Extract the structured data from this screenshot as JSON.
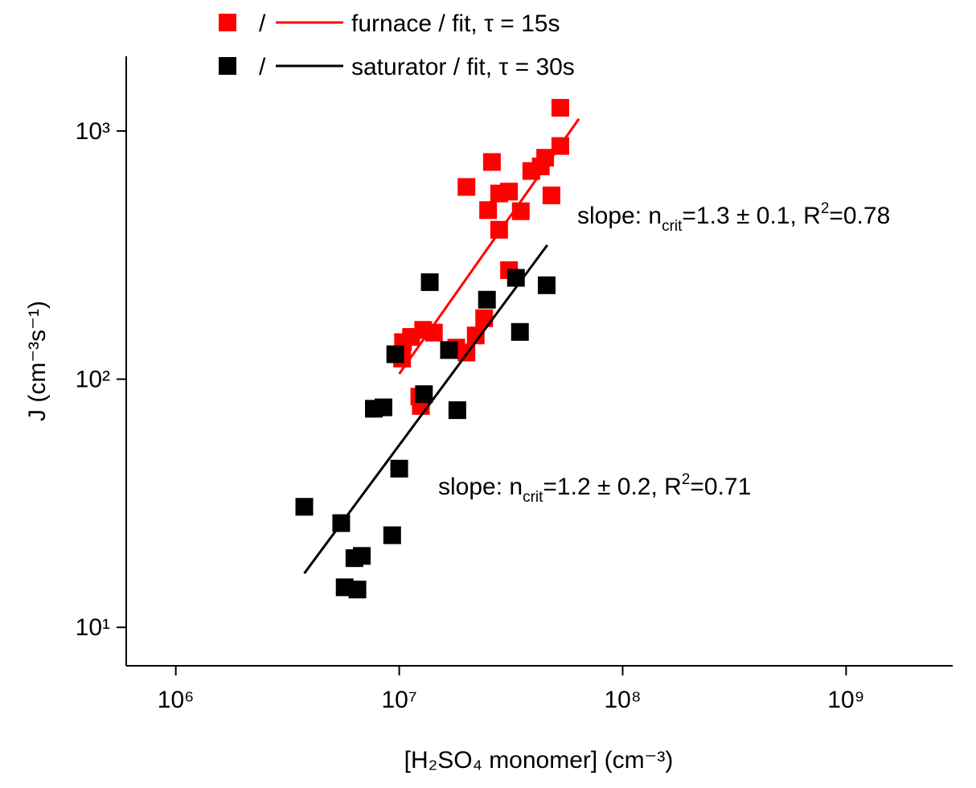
{
  "chart_data": {
    "type": "scatter",
    "x_label": "[H₂SO₄ monomer] (cm⁻³)",
    "y_label": "J (cm⁻³s⁻¹)",
    "xlim": [
      600000,
      3000000000
    ],
    "ylim": [
      7,
      2000
    ],
    "xscale": "log",
    "yscale": "log",
    "xticks": [
      {
        "value": 1000000,
        "label": "10⁶"
      },
      {
        "value": 10000000,
        "label": "10⁷"
      },
      {
        "value": 100000000,
        "label": "10⁸"
      },
      {
        "value": 1000000000,
        "label": "10⁹"
      }
    ],
    "yticks": [
      {
        "value": 10,
        "label": "10¹"
      },
      {
        "value": 100,
        "label": "10²"
      },
      {
        "value": 1000,
        "label": "10³"
      }
    ],
    "legend_separator": "/",
    "series": [
      {
        "name": "furnace / fit, τ = 15s",
        "color": "#ff0000",
        "x": [
          52600000,
          52600000,
          26000000,
          20000000,
          45000000,
          43000000,
          39000000,
          48000000,
          31000000,
          28000000,
          25000000,
          28000000,
          35000000,
          31000000,
          24000000,
          22000000,
          20000000,
          18000000,
          14300000,
          12800000,
          11300000,
          10400000,
          10300000,
          12300000,
          12500000
        ],
        "values": [
          1240,
          870,
          750,
          595,
          780,
          720,
          690,
          550,
          570,
          560,
          480,
          400,
          475,
          275,
          176,
          150,
          128,
          134,
          154,
          158,
          148,
          141,
          121,
          85,
          78
        ],
        "fit": {
          "x": [
            10000000,
            63700000
          ],
          "values": [
            105,
            1119
          ]
        }
      },
      {
        "name": "saturator / fit, τ = 30s",
        "color": "#000000",
        "x": [
          3760000,
          5500000,
          5700000,
          6500000,
          6300000,
          6800000,
          9300000,
          10000000,
          7700000,
          8500000,
          9600000,
          12900000,
          13700000,
          16700000,
          18200000,
          24700000,
          33300000,
          34700000,
          45700000
        ],
        "values": [
          30.6,
          26.3,
          14.5,
          14.2,
          19,
          19.4,
          23.5,
          43.6,
          76,
          77,
          126,
          87,
          246,
          131,
          75,
          209,
          256,
          155,
          239
        ],
        "fit": {
          "x": [
            3760000,
            46000000
          ],
          "values": [
            16.5,
            347
          ]
        }
      }
    ],
    "annotations": [
      {
        "parts": [
          "slope: n",
          "crit",
          "=1.3 ± 0.1, R",
          "2",
          "=0.78"
        ]
      },
      {
        "parts": [
          "slope: n",
          "crit",
          "=1.2 ± 0.2, R",
          "2",
          "=0.71"
        ]
      }
    ]
  }
}
